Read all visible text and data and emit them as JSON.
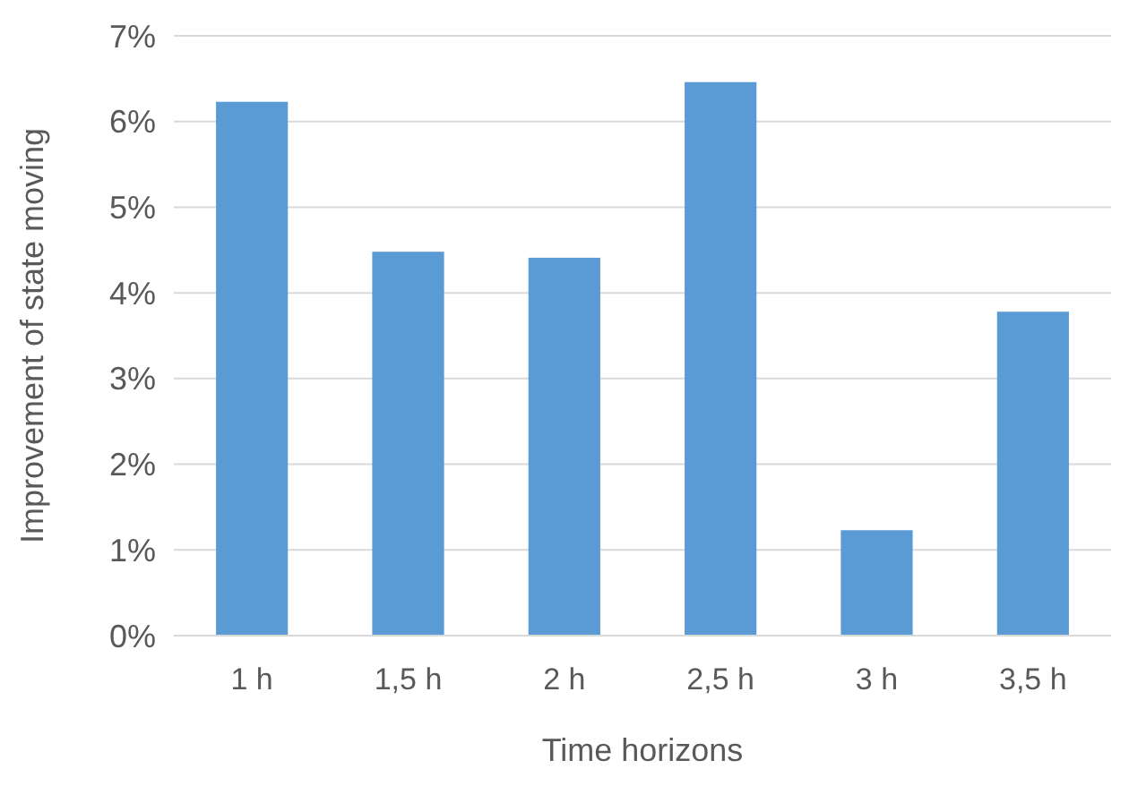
{
  "chart_data": {
    "type": "bar",
    "xlabel": "Time horizons",
    "ylabel": "Improvement of state moving",
    "categories": [
      "1 h",
      "1,5 h",
      "2 h",
      "2,5 h",
      "3 h",
      "3,5 h"
    ],
    "values": [
      6.23,
      4.48,
      4.41,
      6.46,
      1.23,
      3.78
    ],
    "color": "#5b9bd5",
    "ylim": [
      0,
      7
    ],
    "yticks": [
      {
        "value": 0,
        "label": "0%"
      },
      {
        "value": 1,
        "label": "1%"
      },
      {
        "value": 2,
        "label": "2%"
      },
      {
        "value": 3,
        "label": "3%"
      },
      {
        "value": 4,
        "label": "4%"
      },
      {
        "value": 5,
        "label": "5%"
      },
      {
        "value": 6,
        "label": "6%"
      },
      {
        "value": 7,
        "label": "7%"
      }
    ],
    "grid": "y"
  }
}
